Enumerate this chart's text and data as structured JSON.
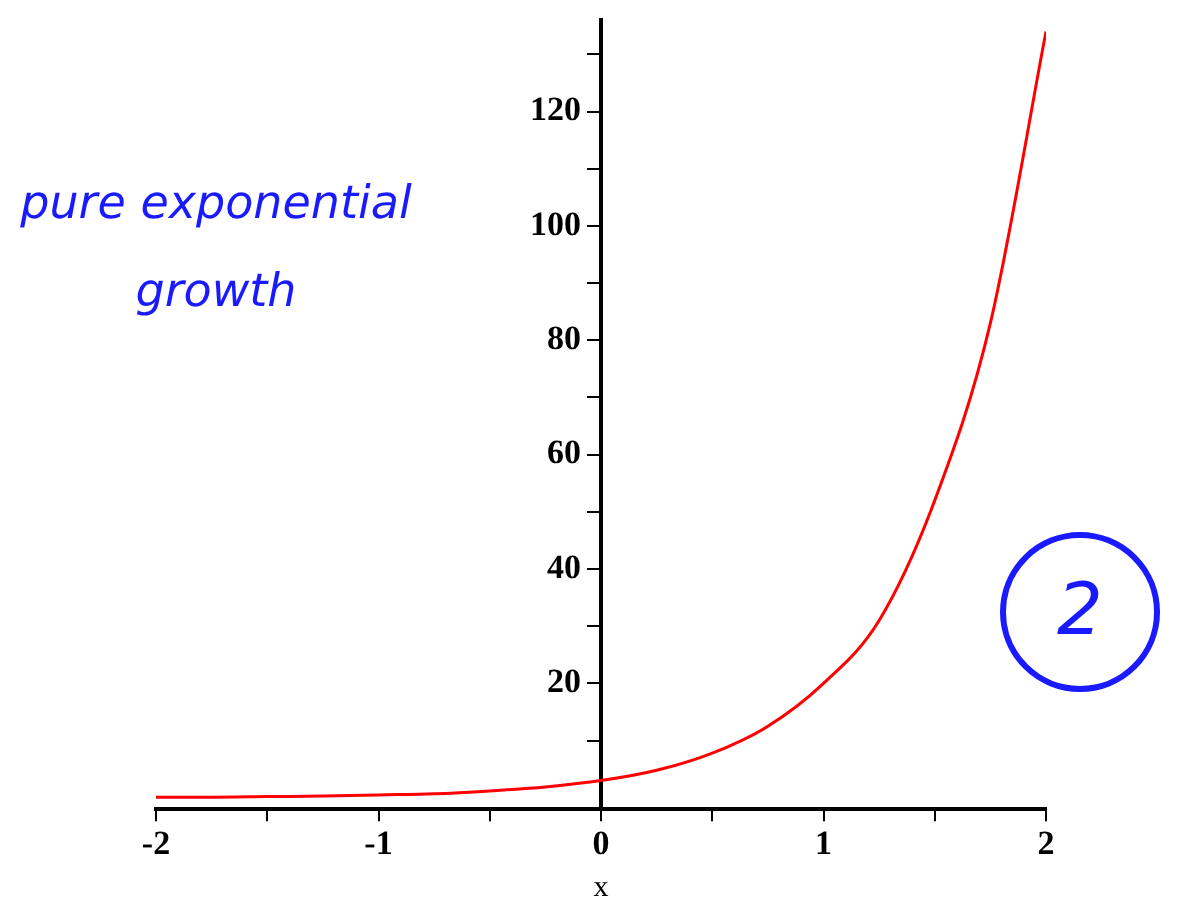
{
  "chart_data": {
    "type": "line",
    "xlabel": "x",
    "marker": "none",
    "line_style": "solid",
    "annotations": [
      "pure exponential growth",
      "2"
    ],
    "xlim": [
      -2,
      2
    ],
    "ylim": [
      -2,
      136
    ],
    "xticks": [
      -2,
      {
        "value": -1.5,
        "label": null
      },
      -1,
      {
        "value": -0.5,
        "label": null
      },
      0,
      {
        "value": 0.5,
        "label": null
      },
      1,
      {
        "value": 1.5,
        "label": null
      },
      2
    ],
    "yticks": [
      {
        "value": 10,
        "label": null
      },
      20,
      {
        "value": 30,
        "label": null
      },
      40,
      {
        "value": 50,
        "label": null
      },
      60,
      {
        "value": 70,
        "label": null
      },
      80,
      {
        "value": 90,
        "label": null
      },
      100,
      {
        "value": 110,
        "label": null
      },
      120,
      {
        "value": 130,
        "label": null
      }
    ],
    "x": [
      -2,
      -1.75,
      -1.5,
      -1.25,
      -1,
      -0.75,
      -0.5,
      -0.25,
      0,
      0.25,
      0.5,
      0.75,
      1,
      1.25,
      1.5,
      1.75,
      2
    ],
    "series": [
      {
        "color": "#ff0000",
        "values": [
          0.1,
          0.1,
          0.2,
          0.3,
          0.5,
          0.7,
          1.2,
          1.9,
          3,
          4.8,
          7.8,
          12.5,
          20,
          31,
          52,
          83,
          134
        ]
      }
    ]
  }
}
